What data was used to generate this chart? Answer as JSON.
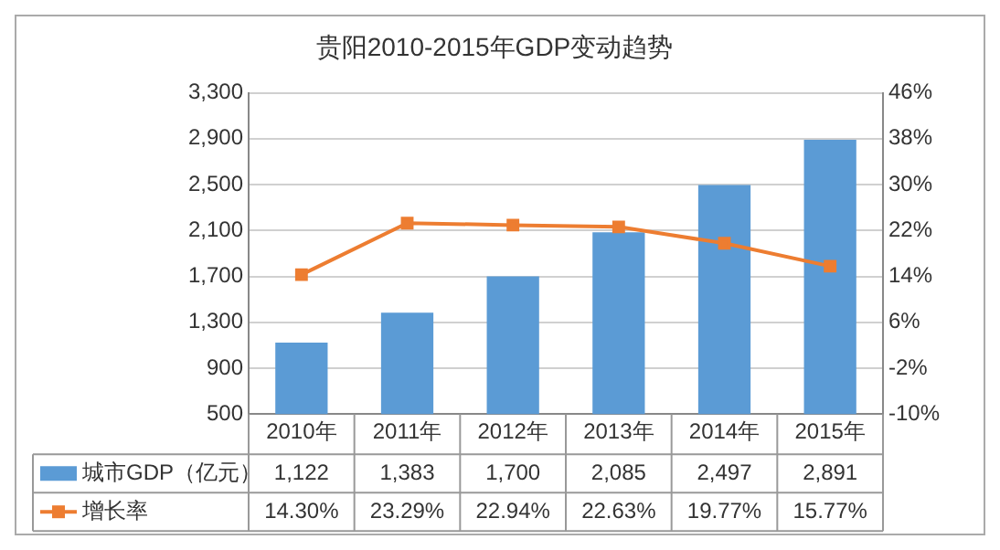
{
  "chart_data": {
    "type": "bar",
    "title": "贵阳2010-2015年GDP变动趋势",
    "categories": [
      "2010年",
      "2011年",
      "2012年",
      "2013年",
      "2014年",
      "2015年"
    ],
    "series": [
      {
        "name": "城市GDP（亿元）",
        "color": "#5b9bd5",
        "values": [
          1122,
          1383,
          1700,
          2085,
          2497,
          2891
        ],
        "value_labels": [
          "1,122",
          "1,383",
          "1,700",
          "2,085",
          "2,497",
          "2,891"
        ]
      },
      {
        "name": "增长率",
        "type": "line",
        "axis": "y2",
        "color": "#ed7d31",
        "marker": "square",
        "values": [
          14.3,
          23.29,
          22.94,
          22.63,
          19.77,
          15.77
        ],
        "value_labels": [
          "14.30%",
          "23.29%",
          "22.94%",
          "22.63%",
          "19.77%",
          "15.77%"
        ]
      }
    ],
    "ylim": [
      500,
      3300
    ],
    "yticks": [
      500,
      900,
      {
        "value": 1300,
        "label": "1,300"
      },
      {
        "value": 1700,
        "label": "1,700"
      },
      {
        "value": 2100,
        "label": "2,100"
      },
      {
        "value": 2500,
        "label": "2,500"
      },
      {
        "value": 2900,
        "label": "2,900"
      },
      {
        "value": 3300,
        "label": "3,300"
      }
    ],
    "y2lim": [
      -10,
      46
    ],
    "y2ticks": [
      {
        "value": -10,
        "label": "-10%"
      },
      {
        "value": -2,
        "label": "-2%"
      },
      {
        "value": 6,
        "label": "6%"
      },
      {
        "value": 14,
        "label": "14%"
      },
      {
        "value": 22,
        "label": "22%"
      },
      {
        "value": 30,
        "label": "30%"
      },
      {
        "value": 38,
        "label": "38%"
      },
      {
        "value": 46,
        "label": "46%"
      }
    ],
    "grid": "y",
    "legend": "bottom"
  }
}
